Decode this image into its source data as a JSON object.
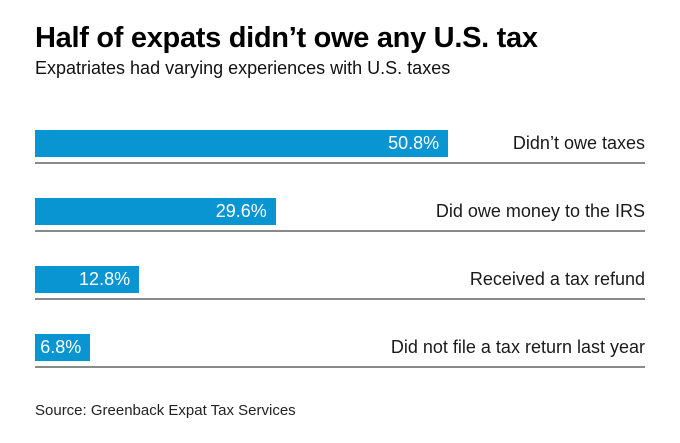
{
  "header": {
    "title": "Half of expats didn’t owe any U.S. tax",
    "subtitle": "Expatriates had varying experiences with U.S. taxes"
  },
  "chart_data": {
    "type": "bar",
    "orientation": "horizontal",
    "title": "Half of expats didn’t owe any U.S. tax",
    "subtitle": "Expatriates had varying experiences with U.S. taxes",
    "categories": [
      "Didn’t owe taxes",
      "Did owe money to the IRS",
      "Received a tax refund",
      "Did not file a tax return last year"
    ],
    "values": [
      50.8,
      29.6,
      12.8,
      6.8
    ],
    "value_labels": [
      "50.8%",
      "29.6%",
      "12.8%",
      "6.8%"
    ],
    "xlim": [
      0,
      75
    ],
    "grid": false,
    "legend": "none",
    "bar_color": "#0994d2",
    "value_label_color": "#ffffff",
    "category_label_position": "right-aligned",
    "row_separator_color": "#8a8a8a"
  },
  "footer": {
    "source": "Source: Greenback Expat Tax Services"
  }
}
